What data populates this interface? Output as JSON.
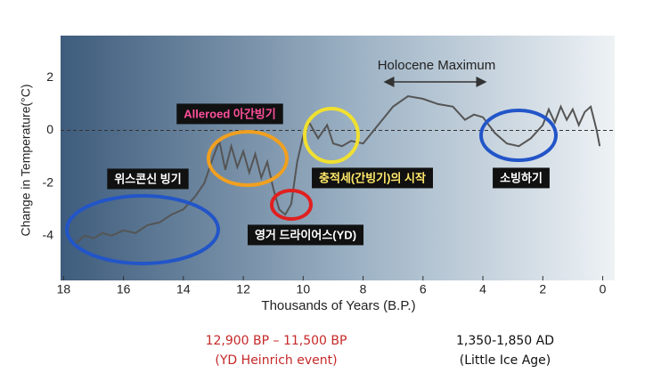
{
  "chart_data": {
    "type": "line",
    "x_label": "Thousands of Years (B.P.)",
    "y_label": "Change in Temperature(°C)",
    "x": [
      17.6,
      17.3,
      17,
      16.7,
      16.4,
      16,
      15.6,
      15.2,
      14.8,
      14.4,
      14,
      13.6,
      13.3,
      13,
      12.8,
      12.6,
      12.4,
      12.2,
      12,
      11.8,
      11.6,
      11.4,
      11.2,
      11,
      10.8,
      10.6,
      10.4,
      10.2,
      10,
      9.8,
      9.5,
      9.2,
      9,
      8.7,
      8.4,
      8,
      7.5,
      7,
      6.5,
      6,
      5.5,
      5,
      4.6,
      4.3,
      4,
      3.6,
      3.2,
      2.8,
      2.4,
      2,
      1.8,
      1.6,
      1.4,
      1.2,
      1,
      0.8,
      0.6,
      0.4,
      0.2,
      0.1
    ],
    "values": [
      -4.3,
      -4.0,
      -4.1,
      -3.9,
      -4.0,
      -3.8,
      -3.9,
      -3.6,
      -3.5,
      -3.2,
      -3.0,
      -2.5,
      -2.0,
      -1.0,
      -0.4,
      -1.5,
      -0.6,
      -1.4,
      -0.8,
      -1.6,
      -0.9,
      -1.8,
      -1.2,
      -2.2,
      -3.0,
      -3.2,
      -2.8,
      -1.2,
      -0.2,
      0.3,
      -0.3,
      0.2,
      -0.5,
      -0.6,
      -0.4,
      -0.5,
      0.2,
      0.9,
      1.3,
      1.2,
      1.0,
      0.9,
      0.4,
      0.6,
      0.5,
      -0.1,
      -0.5,
      -0.6,
      -0.3,
      0.2,
      0.8,
      0.3,
      0.9,
      0.4,
      0.8,
      0.2,
      0.7,
      0.9,
      0.0,
      -0.6
    ],
    "color": "#555555",
    "xlim": [
      18.1,
      -0.4
    ],
    "xticks": [
      18,
      16,
      14,
      12,
      10,
      8,
      6,
      4,
      2,
      0
    ],
    "ylim": [
      -5.7,
      3.6
    ],
    "yticks": [
      -4,
      -2,
      0,
      2
    ],
    "annotations": [
      "Holocene Maximum",
      "Alleroed 아간빙기",
      "위스콘신 빙기",
      "충적세(간빙기)의 시작",
      "영거 드라이어스(YD)",
      "소빙하기"
    ],
    "captions": [
      "12,900 BP – 11,500 BP",
      "(YD Heinrich event)",
      "1,350-1,850 AD",
      "(Little Ice Age)"
    ]
  }
}
